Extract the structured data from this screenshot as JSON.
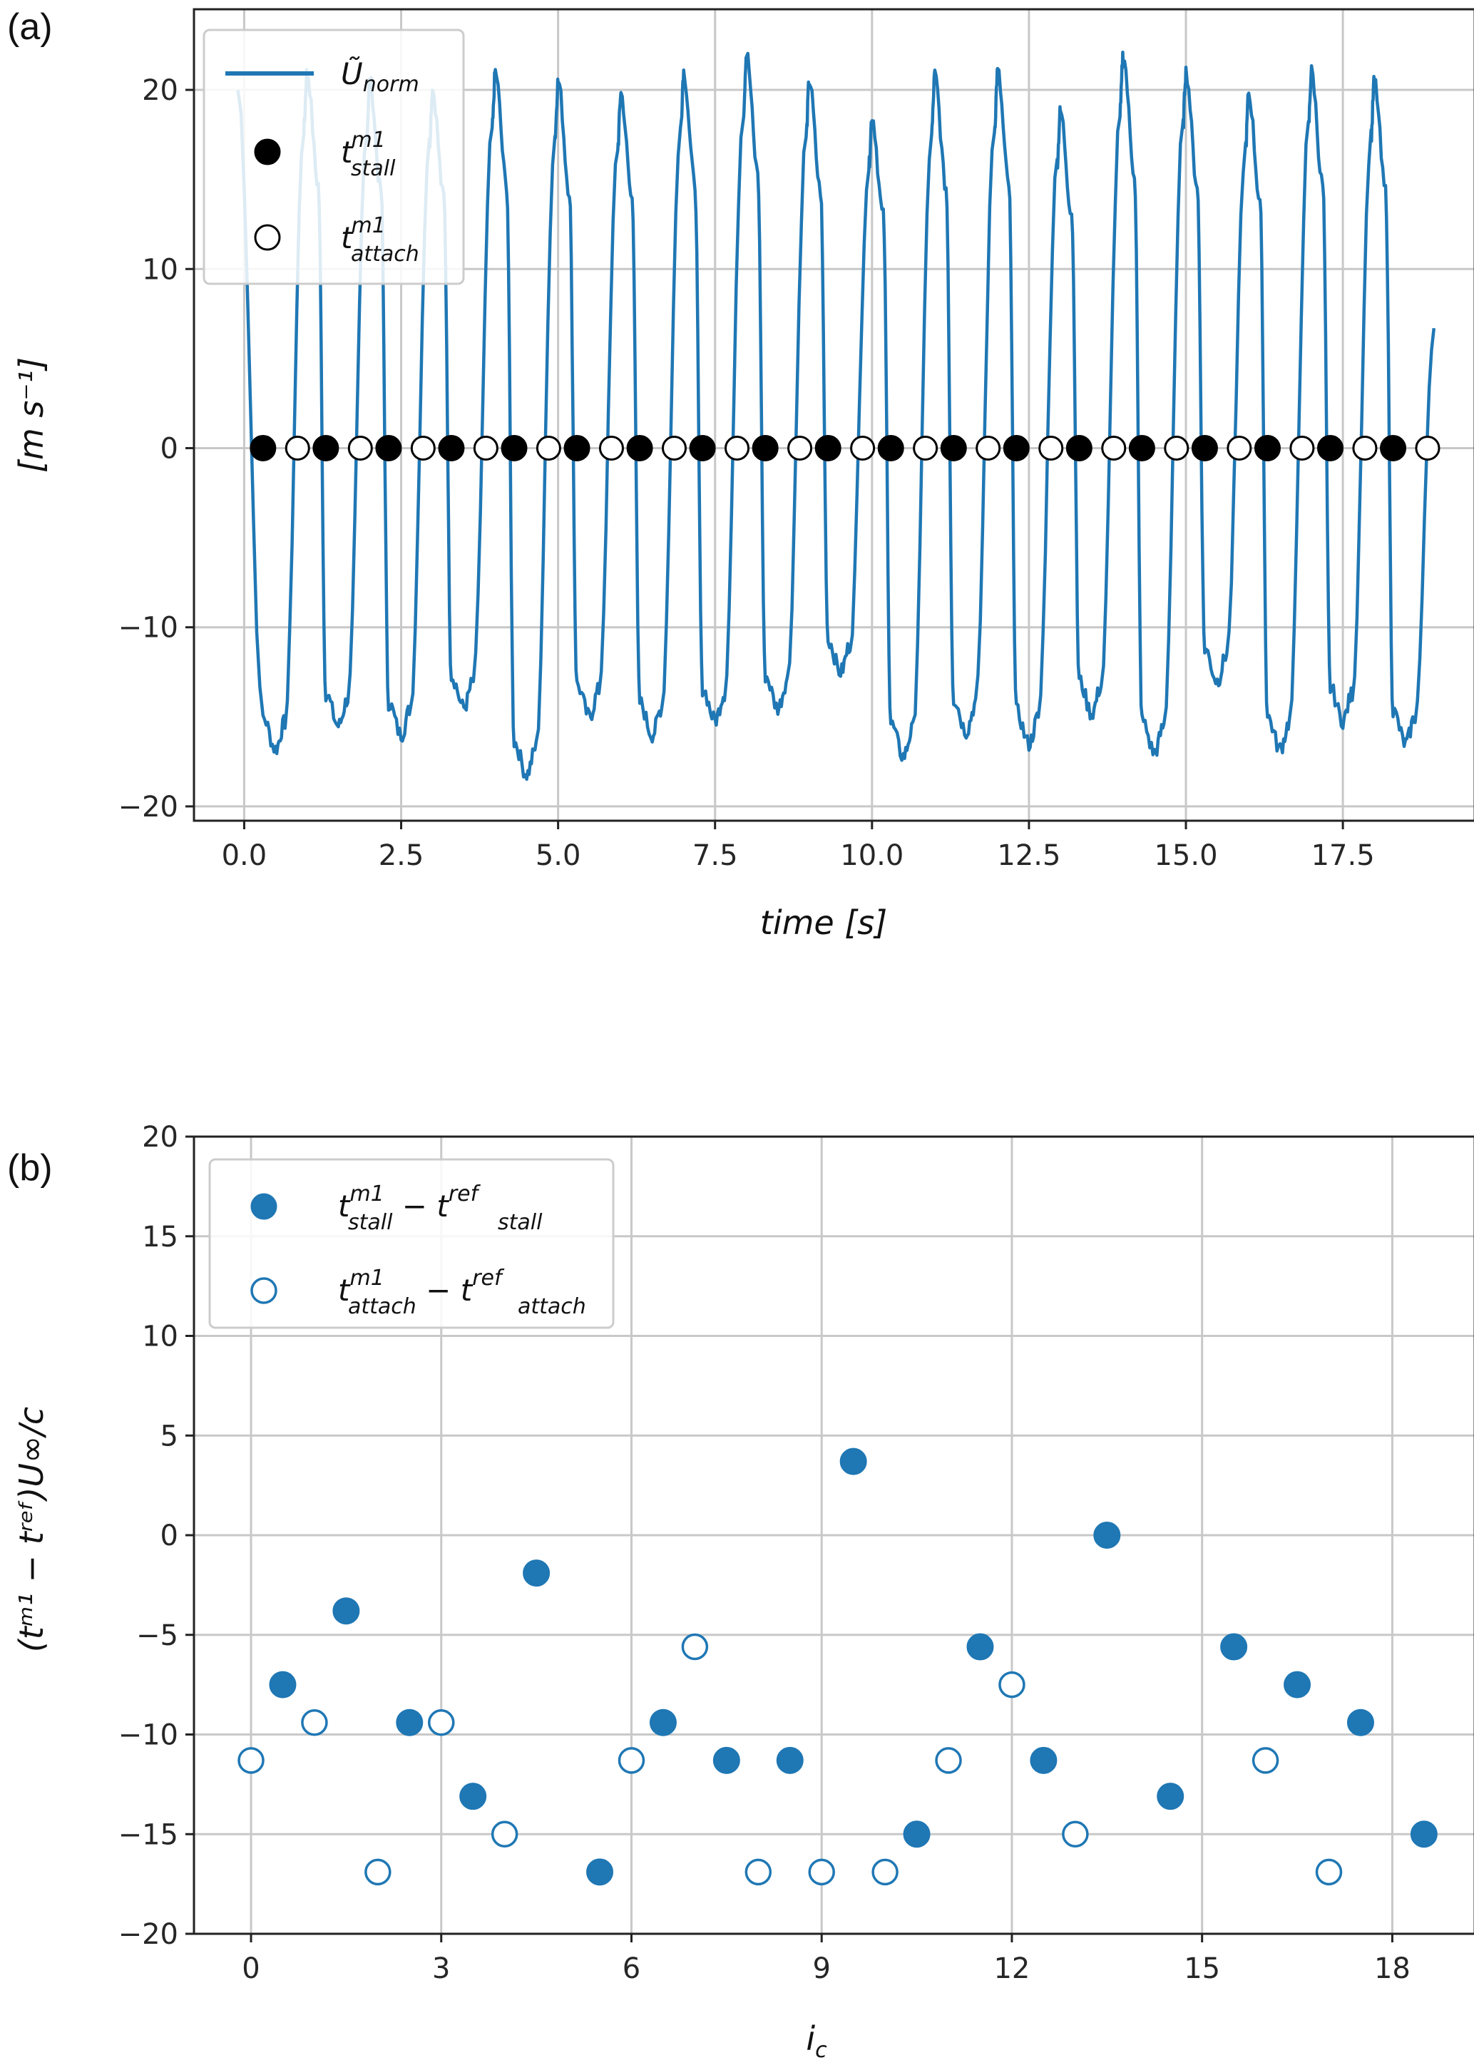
{
  "chart_data": [
    {
      "panel_label": "(a)",
      "type": "line",
      "xlabel": "time [s]",
      "ylabel": "[m s⁻¹]",
      "xlim": [
        -0.8,
        19.6
      ],
      "ylim": [
        -20.8,
        24.5
      ],
      "xticks": [
        0.0,
        2.5,
        5.0,
        7.5,
        10.0,
        12.5,
        15.0,
        17.5
      ],
      "xtick_labels": [
        "0.0",
        "2.5",
        "5.0",
        "7.5",
        "10.0",
        "12.5",
        "15.0",
        "17.5"
      ],
      "yticks": [
        -20,
        -10,
        0,
        10,
        20
      ],
      "ytick_labels": [
        "−20",
        "−10",
        "0",
        "10",
        "20"
      ],
      "grid": true,
      "legend_position": "upper-left",
      "colors": {
        "line": "#1f77b4",
        "markers": "#000000"
      },
      "series": [
        {
          "name": "Ũnorm",
          "kind": "line",
          "cycle_peaks": [
            21.0,
            20.5,
            20.0,
            21.0,
            20.5,
            19.8,
            21.0,
            22.0,
            20.5,
            18.5,
            20.8,
            21.0,
            18.8,
            22.0,
            21.0,
            19.8,
            21.0,
            20.5
          ],
          "cycle_troughs": [
            -16.8,
            -15.5,
            -16.0,
            -14.5,
            -18.2,
            -15.0,
            -16.0,
            -15.2,
            -14.5,
            -12.5,
            -17.2,
            -15.8,
            -16.5,
            -14.8,
            -17.0,
            -13.0,
            -16.8,
            -15.2,
            -16.5
          ],
          "end_value": 6.7
        },
        {
          "name": "t^m1_stall",
          "kind": "markers",
          "marker": "filled-circle",
          "x": [
            0.3,
            1.3,
            2.3,
            3.3,
            4.3,
            5.3,
            6.3,
            7.3,
            8.3,
            9.3,
            10.3,
            11.3,
            12.3,
            13.3,
            14.3,
            15.3,
            16.3,
            17.3,
            18.3
          ],
          "y": [
            0,
            0,
            0,
            0,
            0,
            0,
            0,
            0,
            0,
            0,
            0,
            0,
            0,
            0,
            0,
            0,
            0,
            0,
            0
          ]
        },
        {
          "name": "t^m1_attach",
          "kind": "markers",
          "marker": "open-circle",
          "x": [
            0.85,
            1.85,
            2.85,
            3.85,
            4.85,
            5.85,
            6.85,
            7.85,
            8.85,
            9.85,
            10.85,
            11.85,
            12.85,
            13.85,
            14.85,
            15.85,
            16.85,
            17.85,
            18.85
          ],
          "y": [
            0,
            0,
            0,
            0,
            0,
            0,
            0,
            0,
            0,
            0,
            0,
            0,
            0,
            0,
            0,
            0,
            0,
            0,
            0
          ]
        }
      ],
      "legend": [
        {
          "main": "Ũ",
          "sub": "norm",
          "sup": ""
        },
        {
          "main": "t",
          "sub": "stall",
          "sup": "m1"
        },
        {
          "main": "t",
          "sub": "attach",
          "sup": "m1"
        }
      ]
    },
    {
      "panel_label": "(b)",
      "type": "scatter",
      "xlabel": "i",
      "xlabel_sub": "c",
      "ylabel": "(tᵐ¹ − tʳᵉᶠ)U∞/c",
      "xlim": [
        -0.9,
        19.3
      ],
      "ylim": [
        -20,
        20
      ],
      "xticks": [
        0,
        3,
        6,
        9,
        12,
        15,
        18
      ],
      "xtick_labels": [
        "0",
        "3",
        "6",
        "9",
        "12",
        "15",
        "18"
      ],
      "yticks": [
        -20,
        -15,
        -10,
        -5,
        0,
        5,
        10,
        15,
        20
      ],
      "ytick_labels": [
        "−20",
        "−15",
        "−10",
        "−5",
        "0",
        "5",
        "10",
        "15",
        "20"
      ],
      "grid": true,
      "legend_position": "upper-left",
      "colors": {
        "markers": "#1f77b4"
      },
      "series": [
        {
          "name": "t^m1_stall − t^ref_stall",
          "marker": "filled-circle",
          "x": [
            0.5,
            1.5,
            2.5,
            3.5,
            4.5,
            5.5,
            6.5,
            7.5,
            8.5,
            9.5,
            10.5,
            11.5,
            12.5,
            13.5,
            14.5,
            15.5,
            16.5,
            17.5,
            18.5
          ],
          "y": [
            -7.5,
            -3.8,
            -9.4,
            -13.1,
            -1.9,
            -16.9,
            -9.4,
            -11.3,
            -11.3,
            3.7,
            -15.0,
            -5.6,
            -11.3,
            0.0,
            -13.1,
            -5.6,
            -7.5,
            -9.4,
            -15.0
          ]
        },
        {
          "name": "t^m1_attach − t^ref_attach",
          "marker": "open-circle",
          "x": [
            0,
            1,
            2,
            3,
            4,
            5,
            6,
            7,
            8,
            9,
            10,
            11,
            12,
            13,
            14,
            15,
            16,
            17,
            18
          ],
          "y": [
            -11.3,
            -9.4,
            -16.9,
            -9.4,
            -15.0,
            null,
            -11.3,
            -5.6,
            -16.9,
            -16.9,
            -16.9,
            -11.3,
            -7.5,
            -15.0,
            null,
            null,
            -11.3,
            -16.9,
            null
          ]
        }
      ],
      "legend": [
        {
          "a_main": "t",
          "a_sup": "m1",
          "a_sub": "stall",
          "op": " − ",
          "b_main": "t",
          "b_sup": "ref",
          "b_sub": "stall"
        },
        {
          "a_main": "t",
          "a_sup": "m1",
          "a_sub": "attach",
          "op": " − ",
          "b_main": "t",
          "b_sup": "ref",
          "b_sub": "attach"
        }
      ]
    }
  ]
}
